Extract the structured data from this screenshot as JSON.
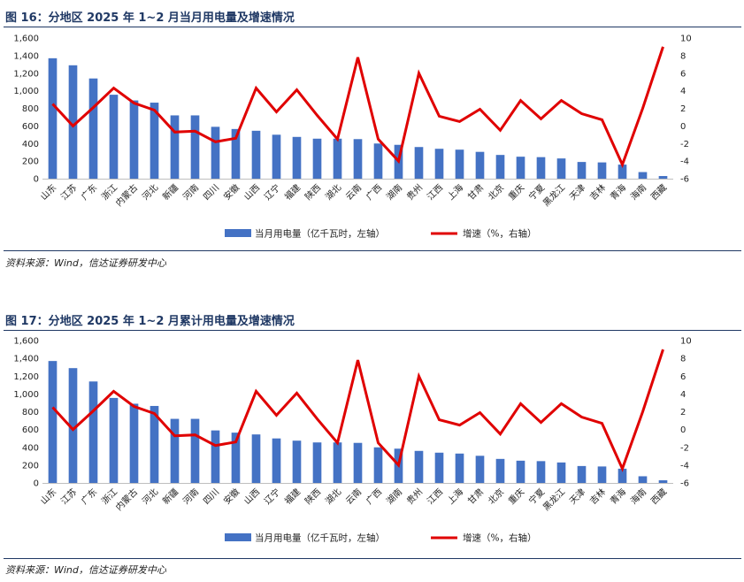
{
  "figures": [
    {
      "title": "图 16：分地区 2025 年 1~2 月当月用电量及增速情况",
      "source": "资料来源：Wind，信达证券研发中心"
    },
    {
      "title": "图 17：分地区 2025 年 1~2 月累计用电量及增速情况",
      "source": "资料来源：Wind，信达证券研发中心"
    }
  ],
  "chart_data": [
    {
      "type": "bar",
      "categories": [
        "山东",
        "江苏",
        "广东",
        "浙江",
        "内蒙古",
        "河北",
        "新疆",
        "河南",
        "四川",
        "安徽",
        "山西",
        "辽宁",
        "福建",
        "陕西",
        "湖北",
        "云南",
        "广西",
        "湖南",
        "贵州",
        "江西",
        "上海",
        "甘肃",
        "北京",
        "重庆",
        "宁夏",
        "黑龙江",
        "天津",
        "吉林",
        "青海",
        "海南",
        "西藏"
      ],
      "series": [
        {
          "name": "当月用电量（亿千瓦时，左轴）",
          "axis": "left",
          "kind": "bar",
          "color": "#4472c4",
          "values": [
            1370,
            1290,
            1140,
            955,
            890,
            865,
            720,
            720,
            590,
            565,
            545,
            500,
            475,
            455,
            455,
            450,
            400,
            385,
            360,
            340,
            330,
            305,
            270,
            250,
            245,
            230,
            190,
            185,
            160,
            75,
            30
          ]
        },
        {
          "name": "增速（%，右轴）",
          "axis": "right",
          "kind": "line",
          "color": "#e00000",
          "values": [
            2.5,
            0.0,
            2.1,
            4.3,
            2.6,
            1.8,
            -0.7,
            -0.6,
            -1.8,
            -1.4,
            4.3,
            1.6,
            4.1,
            1.2,
            -1.5,
            7.8,
            -1.5,
            -4.0,
            6.0,
            1.1,
            0.5,
            1.9,
            -0.5,
            2.9,
            0.8,
            2.9,
            1.4,
            0.7,
            -4.4,
            2.0,
            9.0
          ]
        }
      ],
      "yleft": {
        "min": 0,
        "max": 1600,
        "step": 200,
        "ticks": [
          "0",
          "200",
          "400",
          "600",
          "800",
          "1,000",
          "1,200",
          "1,400",
          "1,600"
        ]
      },
      "yright": {
        "min": -6,
        "max": 10,
        "step": 2,
        "ticks": [
          "-6",
          "-4",
          "-2",
          "0",
          "2",
          "4",
          "6",
          "8",
          "10"
        ]
      },
      "legend_position": "bottom"
    },
    {
      "type": "bar",
      "categories": [
        "山东",
        "江苏",
        "广东",
        "浙江",
        "内蒙古",
        "河北",
        "新疆",
        "河南",
        "四川",
        "安徽",
        "山西",
        "辽宁",
        "福建",
        "陕西",
        "湖北",
        "云南",
        "广西",
        "湖南",
        "贵州",
        "江西",
        "上海",
        "甘肃",
        "北京",
        "重庆",
        "宁夏",
        "黑龙江",
        "天津",
        "吉林",
        "青海",
        "海南",
        "西藏"
      ],
      "series": [
        {
          "name": "当月用电量（亿千瓦时，左轴）",
          "axis": "left",
          "kind": "bar",
          "color": "#4472c4",
          "values": [
            1370,
            1290,
            1140,
            955,
            890,
            865,
            720,
            720,
            590,
            565,
            545,
            500,
            475,
            455,
            455,
            450,
            400,
            385,
            360,
            340,
            330,
            305,
            270,
            250,
            245,
            230,
            190,
            185,
            160,
            75,
            30
          ]
        },
        {
          "name": "增速（%，右轴）",
          "axis": "right",
          "kind": "line",
          "color": "#e00000",
          "values": [
            2.5,
            0.0,
            2.1,
            4.3,
            2.6,
            1.8,
            -0.7,
            -0.6,
            -1.8,
            -1.4,
            4.3,
            1.6,
            4.1,
            1.2,
            -1.5,
            7.8,
            -1.5,
            -4.0,
            6.0,
            1.1,
            0.5,
            1.9,
            -0.5,
            2.9,
            0.8,
            2.9,
            1.4,
            0.7,
            -4.4,
            2.0,
            9.0
          ]
        }
      ],
      "yleft": {
        "min": 0,
        "max": 1600,
        "step": 200,
        "ticks": [
          "0",
          "200",
          "400",
          "600",
          "800",
          "1,000",
          "1,200",
          "1,400",
          "1,600"
        ]
      },
      "yright": {
        "min": -6,
        "max": 10,
        "step": 2,
        "ticks": [
          "-6",
          "-4",
          "-2",
          "0",
          "2",
          "4",
          "6",
          "8",
          "10"
        ]
      },
      "legend_position": "bottom"
    }
  ]
}
